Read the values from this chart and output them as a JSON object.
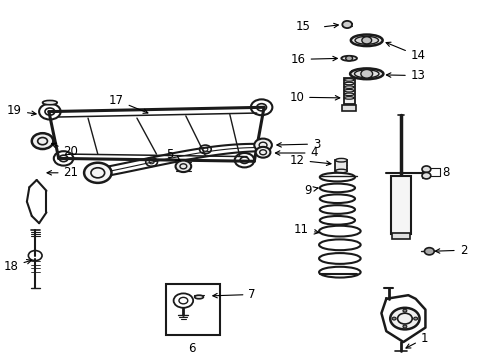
{
  "bg_color": "#ffffff",
  "lc": "#1a1a1a",
  "label_fs": 8.5,
  "parts_labels": {
    "1": [
      0.87,
      0.93,
      0.842,
      0.88
    ],
    "2": [
      0.94,
      0.7,
      0.89,
      0.7
    ],
    "3": [
      0.64,
      0.405,
      0.56,
      0.408
    ],
    "4": [
      0.64,
      0.43,
      0.56,
      0.43
    ],
    "5": [
      0.37,
      0.43,
      0.375,
      0.462
    ],
    "6": [
      0.43,
      0.96,
      0.43,
      0.96
    ],
    "7": [
      0.51,
      0.82,
      0.47,
      0.82
    ],
    "8": [
      0.92,
      0.53,
      0.868,
      0.515
    ],
    "9": [
      0.645,
      0.53,
      0.685,
      0.53
    ],
    "10": [
      0.63,
      0.27,
      0.695,
      0.28
    ],
    "11": [
      0.638,
      0.63,
      0.672,
      0.638
    ],
    "12": [
      0.632,
      0.445,
      0.68,
      0.448
    ],
    "13": [
      0.838,
      0.215,
      0.79,
      0.218
    ],
    "14": [
      0.838,
      0.158,
      0.79,
      0.162
    ],
    "15": [
      0.64,
      0.082,
      0.7,
      0.082
    ],
    "16": [
      0.632,
      0.168,
      0.695,
      0.172
    ],
    "17": [
      0.262,
      0.282,
      0.305,
      0.32
    ],
    "18": [
      0.042,
      0.72,
      0.075,
      0.66
    ],
    "19": [
      0.052,
      0.315,
      0.098,
      0.33
    ],
    "20": [
      0.128,
      0.428,
      0.105,
      0.42
    ],
    "21": [
      0.128,
      0.48,
      0.095,
      0.48
    ]
  }
}
